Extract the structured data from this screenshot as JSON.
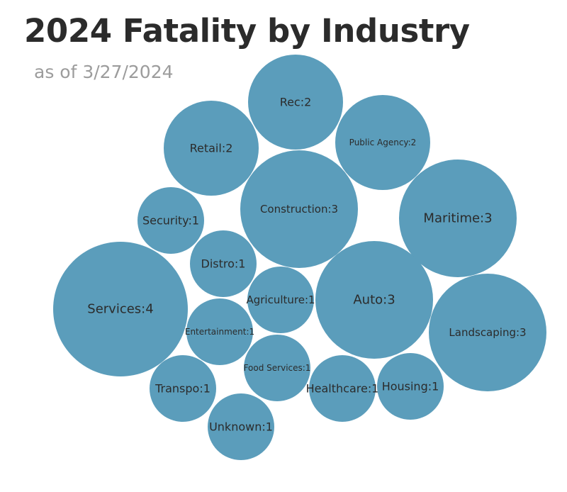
{
  "chart_data": {
    "type": "bubble",
    "title": "2024 Fatality by Industry",
    "subtitle": "as of 3/27/2024",
    "bubble_color": "#5b9dbb",
    "label_color": "#2b2b2b",
    "series": [
      {
        "category": "Services",
        "value": 4,
        "label": "Services:4"
      },
      {
        "category": "Construction",
        "value": 3,
        "label": "Construction:3"
      },
      {
        "category": "Maritime",
        "value": 3,
        "label": "Maritime:3"
      },
      {
        "category": "Auto",
        "value": 3,
        "label": "Auto:3"
      },
      {
        "category": "Landscaping",
        "value": 3,
        "label": "Landscaping:3"
      },
      {
        "category": "Rec",
        "value": 2,
        "label": "Rec:2"
      },
      {
        "category": "Retail",
        "value": 2,
        "label": "Retail:2"
      },
      {
        "category": "Public Agency",
        "value": 2,
        "label": "Public Agency:2"
      },
      {
        "category": "Security",
        "value": 1,
        "label": "Security:1"
      },
      {
        "category": "Distro",
        "value": 1,
        "label": "Distro:1"
      },
      {
        "category": "Agriculture",
        "value": 1,
        "label": "Agriculture:1"
      },
      {
        "category": "Entertainment",
        "value": 1,
        "label": "Entertainment:1"
      },
      {
        "category": "Food Services",
        "value": 1,
        "label": "Food Services:1"
      },
      {
        "category": "Transpo",
        "value": 1,
        "label": "Transpo:1"
      },
      {
        "category": "Healthcare",
        "value": 1,
        "label": "Healthcare:1"
      },
      {
        "category": "Housing",
        "value": 1,
        "label": "Housing:1"
      },
      {
        "category": "Unknown",
        "value": 1,
        "label": "Unknown:1"
      }
    ]
  }
}
